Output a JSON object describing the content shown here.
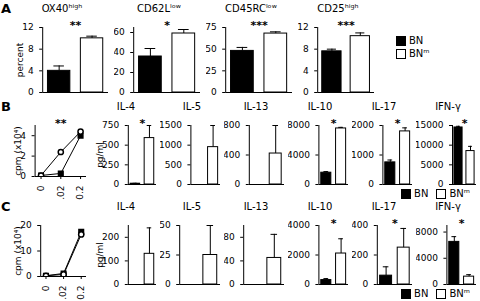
{
  "chart_data": [
    {
      "type": "bar",
      "panel": "A",
      "title": "OX40ʰⁱᵍʰ",
      "ylabel": "percent",
      "series": [
        {
          "name": "BN",
          "color": "#000000",
          "values": [
            4
          ],
          "errors": [
            0.9
          ]
        },
        {
          "name": "BNᵐ",
          "color": "#ffffff",
          "values": [
            10
          ],
          "errors": [
            0.4
          ]
        }
      ],
      "ylim": [
        0,
        12
      ],
      "yticks": [
        0,
        4,
        8,
        12
      ],
      "annotations": [
        {
          "text": "**"
        }
      ]
    },
    {
      "type": "bar",
      "title": "CD62Lˡᵒʷ",
      "series": [
        {
          "name": "BN",
          "color": "#000000",
          "values": [
            36
          ],
          "errors": [
            8
          ]
        },
        {
          "name": "BNᵐ",
          "color": "#ffffff",
          "values": [
            59
          ],
          "errors": [
            4
          ]
        }
      ],
      "ylim": [
        0,
        65
      ],
      "yticks": [
        0,
        20,
        40,
        60
      ],
      "annotations": [
        {
          "text": "*"
        }
      ]
    },
    {
      "type": "bar",
      "title": "CD45RCˡᵒʷ",
      "series": [
        {
          "name": "BN",
          "color": "#000000",
          "values": [
            48
          ],
          "errors": [
            4
          ]
        },
        {
          "name": "BNᵐ",
          "color": "#ffffff",
          "values": [
            68
          ],
          "errors": [
            2
          ]
        }
      ],
      "ylim": [
        0,
        75
      ],
      "yticks": [
        0,
        25,
        50,
        75
      ],
      "annotations": [
        {
          "text": "***"
        }
      ]
    },
    {
      "type": "bar",
      "title": "CD25ʰⁱᵍʰ",
      "legend": "right",
      "series": [
        {
          "name": "BN",
          "color": "#000000",
          "values": [
            7.6
          ],
          "errors": [
            0.4
          ]
        },
        {
          "name": "BNᵐ",
          "color": "#ffffff",
          "values": [
            10.4
          ],
          "errors": [
            0.6
          ]
        }
      ],
      "ylim": [
        0,
        12
      ],
      "yticks": [
        0,
        4,
        8,
        12
      ],
      "annotations": [
        {
          "text": "***"
        }
      ]
    },
    {
      "type": "line",
      "panel": "B",
      "ylabel": "cpm (x10⁴)",
      "categories": [
        "0",
        "0.02",
        "0.2"
      ],
      "series": [
        {
          "name": "BN",
          "color": "#000000",
          "marker": "square",
          "values": [
            0.1,
            0.3,
            4.0
          ]
        },
        {
          "name": "BNᵐ",
          "color": "#ffffff",
          "marker": "circle",
          "values": [
            0.1,
            2.4,
            4.4
          ]
        }
      ],
      "ylim": [
        0,
        5
      ],
      "yticks": [
        0,
        2,
        4
      ],
      "annotations": [
        {
          "text": "**",
          "x": 1
        }
      ]
    },
    {
      "type": "bar",
      "title": "IL-4",
      "ylabel": "pg/ml",
      "series": [
        {
          "name": "BN",
          "color": "#000000",
          "values": [
            10
          ],
          "errors": [
            5
          ]
        },
        {
          "name": "BNᵐ",
          "color": "#ffffff",
          "values": [
            590
          ],
          "errors": [
            160
          ]
        }
      ],
      "ylim": [
        0,
        750
      ],
      "yticks": [
        0,
        250,
        500,
        750
      ],
      "annotations": [
        {
          "text": "*"
        }
      ]
    },
    {
      "type": "bar",
      "title": "IL-5",
      "series": [
        {
          "name": "BN",
          "color": "#000000",
          "values": [
            0
          ],
          "errors": [
            0
          ]
        },
        {
          "name": "BNᵐ",
          "color": "#ffffff",
          "values": [
            950
          ],
          "errors": [
            550
          ]
        }
      ],
      "ylim": [
        0,
        1500
      ],
      "yticks": [
        0,
        500,
        1000,
        1500
      ]
    },
    {
      "type": "bar",
      "title": "IL-13",
      "series": [
        {
          "name": "BN",
          "color": "#000000",
          "values": [
            0
          ],
          "errors": [
            0
          ]
        },
        {
          "name": "BNᵐ",
          "color": "#ffffff",
          "values": [
            420
          ],
          "errors": [
            380
          ]
        }
      ],
      "ylim": [
        0,
        800
      ],
      "yticks": [
        0,
        400,
        800
      ]
    },
    {
      "type": "bar",
      "title": "IL-10",
      "series": [
        {
          "name": "BN",
          "color": "#000000",
          "values": [
            1600
          ],
          "errors": [
            150
          ]
        },
        {
          "name": "BNᵐ",
          "color": "#ffffff",
          "values": [
            7600
          ],
          "errors": [
            150
          ]
        }
      ],
      "ylim": [
        0,
        8000
      ],
      "yticks": [
        0,
        4000,
        8000
      ],
      "annotations": [
        {
          "text": "*"
        }
      ]
    },
    {
      "type": "bar",
      "title": "IL-17",
      "series": [
        {
          "name": "BN",
          "color": "#000000",
          "values": [
            750
          ],
          "errors": [
            80
          ]
        },
        {
          "name": "BNᵐ",
          "color": "#ffffff",
          "values": [
            1800
          ],
          "errors": [
            120
          ]
        }
      ],
      "ylim": [
        0,
        2000
      ],
      "yticks": [
        0,
        1000,
        2000
      ],
      "annotations": [
        {
          "text": "*"
        }
      ]
    },
    {
      "type": "bar",
      "title": "IFN-γ",
      "legend": "bottom",
      "series": [
        {
          "name": "BN",
          "color": "#000000",
          "values": [
            14500
          ],
          "errors": [
            300
          ]
        },
        {
          "name": "BNᵐ",
          "color": "#ffffff",
          "values": [
            8500
          ],
          "errors": [
            1200
          ]
        }
      ],
      "ylim": [
        0,
        15000
      ],
      "yticks": [
        0,
        5000,
        10000,
        15000
      ],
      "annotations": [
        {
          "text": "*"
        }
      ]
    },
    {
      "type": "line",
      "panel": "C",
      "ylabel": "cpm (x10⁴)",
      "categories": [
        "0",
        "0.02",
        "0.2"
      ],
      "series": [
        {
          "name": "BN",
          "color": "#000000",
          "marker": "square",
          "values": [
            0.3,
            1.2,
            17.5
          ]
        },
        {
          "name": "BNᵐ",
          "color": "#ffffff",
          "marker": "circle",
          "values": [
            0.3,
            0.8,
            16.5
          ]
        }
      ],
      "ylim": [
        0,
        20
      ],
      "yticks": [
        0,
        10,
        20
      ]
    },
    {
      "type": "bar",
      "title": "IL-4",
      "ylabel": "pg/ml",
      "series": [
        {
          "name": "BN",
          "color": "#000000",
          "values": [
            0
          ],
          "errors": [
            0
          ]
        },
        {
          "name": "BNᵐ",
          "color": "#ffffff",
          "values": [
            130
          ],
          "errors": [
            110
          ]
        }
      ],
      "ylim": [
        0,
        250
      ],
      "yticks": [
        0,
        100,
        200
      ]
    },
    {
      "type": "bar",
      "title": "IL-5",
      "series": [
        {
          "name": "BN",
          "color": "#000000",
          "values": [
            0
          ],
          "errors": [
            0
          ]
        },
        {
          "name": "BNᵐ",
          "color": "#ffffff",
          "values": [
            25
          ],
          "errors": [
            25
          ]
        }
      ],
      "ylim": [
        0,
        50
      ],
      "yticks": [
        0,
        25,
        50
      ]
    },
    {
      "type": "bar",
      "title": "IL-13",
      "series": [
        {
          "name": "BN",
          "color": "#000000",
          "values": [
            0
          ],
          "errors": [
            0
          ]
        },
        {
          "name": "BNᵐ",
          "color": "#ffffff",
          "values": [
            45
          ],
          "errors": [
            40
          ]
        }
      ],
      "ylim": [
        0,
        100
      ],
      "yticks": [
        0,
        40,
        80
      ]
    },
    {
      "type": "bar",
      "title": "IL-10",
      "series": [
        {
          "name": "BN",
          "color": "#000000",
          "values": [
            300
          ],
          "errors": [
            100
          ]
        },
        {
          "name": "BNᵐ",
          "color": "#ffffff",
          "values": [
            2100
          ],
          "errors": [
            1000
          ]
        }
      ],
      "ylim": [
        0,
        4000
      ],
      "yticks": [
        0,
        2000,
        4000
      ],
      "annotations": [
        {
          "text": "*"
        }
      ]
    },
    {
      "type": "bar",
      "title": "IL-17",
      "series": [
        {
          "name": "BN",
          "color": "#000000",
          "values": [
            60
          ],
          "errors": [
            60
          ]
        },
        {
          "name": "BNᵐ",
          "color": "#ffffff",
          "values": [
            250
          ],
          "errors": [
            130
          ]
        }
      ],
      "ylim": [
        0,
        400
      ],
      "yticks": [
        0,
        200,
        400
      ],
      "annotations": [
        {
          "text": "*"
        }
      ]
    },
    {
      "type": "bar",
      "title": "IFN-γ",
      "legend": "bottom",
      "series": [
        {
          "name": "BN",
          "color": "#000000",
          "values": [
            6500
          ],
          "errors": [
            800
          ]
        },
        {
          "name": "BNᵐ",
          "color": "#ffffff",
          "values": [
            1200
          ],
          "errors": [
            300
          ]
        }
      ],
      "ylim": [
        0,
        9000
      ],
      "yticks": [
        0,
        4000,
        8000
      ],
      "annotations": [
        {
          "text": "*"
        }
      ]
    }
  ]
}
